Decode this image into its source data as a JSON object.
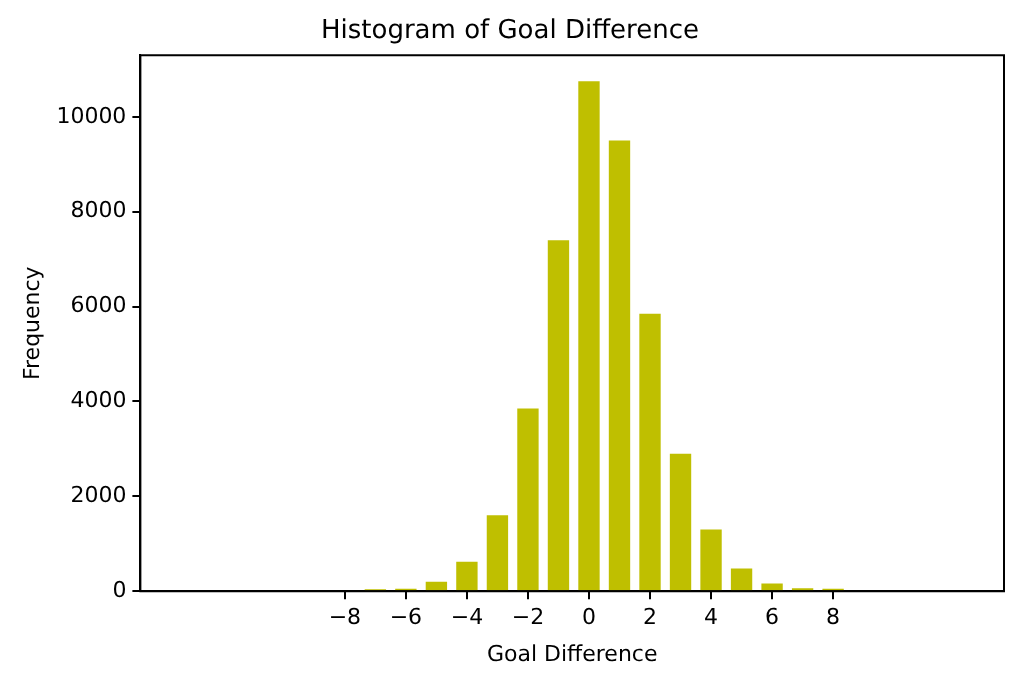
{
  "chart_data": {
    "type": "histogram",
    "title": "Histogram of Goal Difference",
    "xlabel": "Goal Difference",
    "ylabel": "Frequency",
    "bins": [
      -7.5,
      -6.5,
      -5.5,
      -4.5,
      -3.5,
      -2.5,
      -1.5,
      -0.5,
      0.5,
      1.5,
      2.5,
      3.5,
      4.5,
      5.5,
      6.5,
      7.5,
      8.5
    ],
    "values": [
      40,
      50,
      200,
      620,
      1600,
      3850,
      7400,
      10750,
      9500,
      5850,
      2900,
      1300,
      480,
      160,
      60,
      50
    ],
    "color": "#bfbf00",
    "xlim": [
      -14.7,
      13.6
    ],
    "xticks": [
      {
        "value": -8,
        "label": "−8"
      },
      {
        "value": -6,
        "label": "−6"
      },
      {
        "value": -4,
        "label": "−4"
      },
      {
        "value": -2,
        "label": "−2"
      },
      0,
      2,
      4,
      6,
      8
    ],
    "ylim": [
      0,
      11300
    ],
    "yticks": [
      0,
      2000,
      4000,
      6000,
      8000,
      10000
    ],
    "grid": false,
    "legend": false
  }
}
